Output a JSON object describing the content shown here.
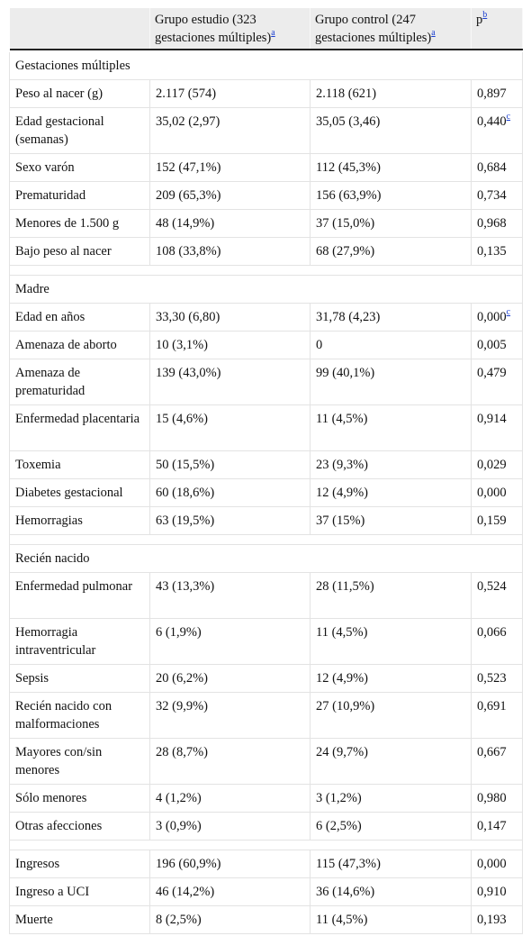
{
  "header": {
    "col1": "",
    "col2": "Grupo estudio (323 gestaciones múltiples)",
    "col2_note": "a",
    "col3": "Grupo control (247 gestaciones múltiples)",
    "col3_note": "a",
    "col4": "p",
    "col4_note": "b"
  },
  "sections": {
    "s1": "Gestaciones múltiples",
    "s2": "Madre",
    "s3": "Recién nacido"
  },
  "rows": [
    {
      "label": " Peso al nacer (g)",
      "study": "2.117 (574)",
      "control": "2.118 (621)",
      "p": "0,897"
    },
    {
      "label": " Edad gestacional (semanas)",
      "study": "35,02 (2,97)",
      "control": "35,05 (3,46)",
      "p": "0,440",
      "p_note": "c"
    },
    {
      "label": " Sexo varón",
      "study": "152 (47,1%)",
      "control": "112 (45,3%)",
      "p": "0,684"
    },
    {
      "label": " Prematuridad",
      "study": "209 (65,3%)",
      "control": "156 (63,9%)",
      "p": "0,734"
    },
    {
      "label": " Menores de 1.500 g",
      "study": "48 (14,9%)",
      "control": "37 (15,0%)",
      "p": "0,968"
    },
    {
      "label": " Bajo peso al nacer",
      "study": "108 (33,8%)",
      "control": "68 (27,9%)",
      "p": "0,135"
    },
    {
      "label": " Edad en años",
      "study": "33,30 (6,80)",
      "control": "31,78 (4,23)",
      "p": "0,000",
      "p_note": "c"
    },
    {
      "label": " Amenaza de aborto",
      "study": "10 (3,1%)",
      "control": "0",
      "p": "0,005"
    },
    {
      "label": " Amenaza de prematuridad",
      "study": "139 (43,0%)",
      "control": "99 (40,1%)",
      "p": "0,479"
    },
    {
      "label": " Enfermedad placentaria",
      "study": "15 (4,6%)",
      "control": "11 (4,5%)",
      "p": "0,914"
    },
    {
      "label": " Toxemia",
      "study": "50 (15,5%)",
      "control": "23 (9,3%)",
      "p": "0,029"
    },
    {
      "label": " Diabetes gestacional",
      "study": "60 (18,6%)",
      "control": "12 (4,9%)",
      "p": "0,000"
    },
    {
      "label": " Hemorragias",
      "study": "63 (19,5%)",
      "control": "37 (15%)",
      "p": "0,159"
    },
    {
      "label": " Enfermedad pulmonar",
      "study": "43 (13,3%)",
      "control": "28 (11,5%)",
      "p": "0,524"
    },
    {
      "label": " Hemorragia intraventricular",
      "study": "6 (1,9%)",
      "control": "11 (4,5%)",
      "p": "0,066"
    },
    {
      "label": " Sepsis",
      "study": "20 (6,2%)",
      "control": "12 (4,9%)",
      "p": "0,523"
    },
    {
      "label": " Recién nacido con malformaciones",
      "study": "32 (9,9%)",
      "control": "27 (10,9%)",
      "p": "0,691"
    },
    {
      "label": " Mayores con/sin menores",
      "study": "28 (8,7%)",
      "control": "24 (9,7%)",
      "p": "0,667"
    },
    {
      "label": " Sólo menores",
      "study": "4 (1,2%)",
      "control": "3 (1,2%)",
      "p": "0,980"
    },
    {
      "label": "Otras afecciones",
      "study": "3 (0,9%)",
      "control": "6 (2,5%)",
      "p": "0,147"
    },
    {
      "label": "Ingresos",
      "study": "196 (60,9%)",
      "control": "115 (47,3%)",
      "p": "0,000"
    },
    {
      "label": " Ingreso a UCI",
      "study": "46 (14,2%)",
      "control": "36 (14,6%)",
      "p": "0,910"
    },
    {
      "label": "Muerte",
      "study": "8 (2,5%)",
      "control": "11 (4,5%)",
      "p": "0,193"
    }
  ]
}
